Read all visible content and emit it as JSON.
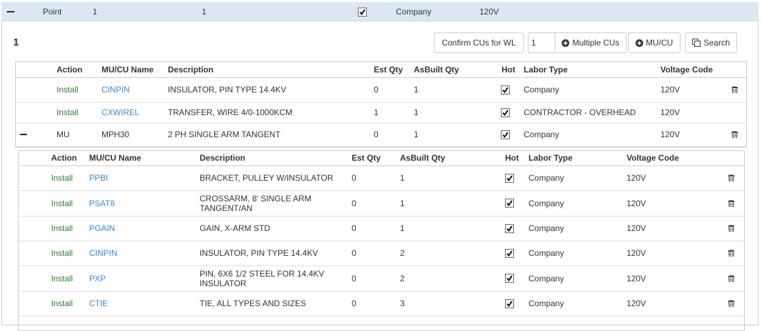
{
  "point_row": {
    "type": "Point",
    "col1": "1",
    "col2": "1",
    "labor_type": "Company",
    "voltage_code": "120V"
  },
  "panel": {
    "title": "1",
    "confirm_button": "Confirm CUs for WL",
    "quantity_input": "1",
    "multiple_button": "Multiple CUs",
    "mucu_button": "MU/CU",
    "search_button": "Search"
  },
  "table": {
    "columns": {
      "action": "Action",
      "name": "MU/CU Name",
      "description": "Description",
      "est_qty": "Est Qty",
      "asbuilt_qty": "AsBuilt Qty",
      "hot": "Hot",
      "labor_type": "Labor Type",
      "voltage_code": "Voltage Code"
    },
    "rows": [
      {
        "action": "Install",
        "name": "CINPIN",
        "description": "INSULATOR, PIN TYPE 14.4KV",
        "est_qty": 0,
        "asbuilt_qty": 1,
        "labor_type": "Company",
        "voltage_code": "120V"
      },
      {
        "action": "Install",
        "name": "CXWIREL",
        "description": "TRANSFER, WIRE 4/0-1000KCM",
        "est_qty": 1,
        "asbuilt_qty": 1,
        "labor_type": "CONTRACTOR - OVERHEAD",
        "voltage_code": "120V"
      },
      {
        "action": "MU",
        "name": "MPH30",
        "description": "2 PH SINGLE ARM TANGENT",
        "est_qty": 0,
        "asbuilt_qty": 1,
        "labor_type": "Company",
        "voltage_code": "120V"
      }
    ]
  },
  "sub_table": {
    "columns": {
      "action": "Action",
      "name": "MU/CU Name",
      "description": "Description",
      "est_qty": "Est Qty",
      "asbuilt_qty": "AsBuilt Qty",
      "hot": "Hot",
      "labor_type": "Labor Type",
      "voltage_code": "Voltage Code"
    },
    "rows": [
      {
        "action": "Install",
        "name": "PPBI",
        "description": "BRACKET, PULLEY W/INSULATOR",
        "est_qty": 0,
        "asbuilt_qty": 1,
        "labor_type": "Company",
        "voltage_code": "120V"
      },
      {
        "action": "Install",
        "name": "PSAT8",
        "description": "CROSSARM, 8' SINGLE ARM TANGENT/AN",
        "est_qty": 0,
        "asbuilt_qty": 1,
        "labor_type": "Company",
        "voltage_code": "120V"
      },
      {
        "action": "Install",
        "name": "PGAIN",
        "description": "GAIN, X-ARM STD",
        "est_qty": 0,
        "asbuilt_qty": 1,
        "labor_type": "Company",
        "voltage_code": "120V"
      },
      {
        "action": "Install",
        "name": "CINPIN",
        "description": "INSULATOR, PIN TYPE 14.4KV",
        "est_qty": 0,
        "asbuilt_qty": 2,
        "labor_type": "Company",
        "voltage_code": "120V"
      },
      {
        "action": "Install",
        "name": "PXP",
        "description": "PIN, 6X6 1/2 STEEL FOR 14.4KV INSULATOR",
        "est_qty": 0,
        "asbuilt_qty": 2,
        "labor_type": "Company",
        "voltage_code": "120V"
      },
      {
        "action": "Install",
        "name": "CTIE",
        "description": "TIE, ALL TYPES AND SIZES",
        "est_qty": 0,
        "asbuilt_qty": 3,
        "labor_type": "Company",
        "voltage_code": "120V"
      }
    ]
  }
}
